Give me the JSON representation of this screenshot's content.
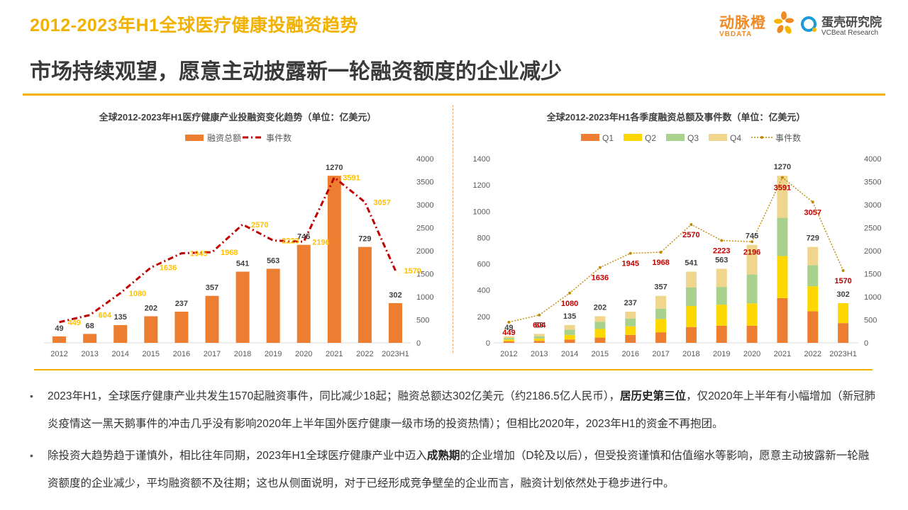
{
  "header": {
    "title": "2012-2023年H1全球医疗健康投融资趋势",
    "subtitle": "市场持续观望，愿意主动披露新一轮融资额度的企业减少"
  },
  "logos": {
    "vbdata_cn": "动脉橙",
    "vbdata_en": "VBDATA",
    "vcbeat_cn": "蛋壳研究院",
    "vcbeat_en": "VCBeat Research"
  },
  "colors": {
    "accent": "#f2b100",
    "bar": "#ed7d31",
    "line": "#c00000",
    "q1": "#ed7d31",
    "q2": "#ffd700",
    "q3": "#a9d18e",
    "q4": "#f0d58c"
  },
  "chart_data": [
    {
      "type": "bar",
      "title": "全球2012-2023年H1医疗健康产业投融资变化趋势（单位：亿美元）",
      "categories": [
        "2012",
        "2013",
        "2014",
        "2015",
        "2016",
        "2017",
        "2018",
        "2019",
        "2020",
        "2021",
        "2022",
        "2023H1"
      ],
      "legend": [
        "融资总额",
        "事件数"
      ],
      "legend_position": "top",
      "series": [
        {
          "name": "融资总额",
          "type": "bar",
          "axis": "left",
          "values": [
            49,
            68,
            135,
            202,
            237,
            357,
            541,
            563,
            745,
            1270,
            729,
            302
          ]
        },
        {
          "name": "事件数",
          "type": "line",
          "axis": "right",
          "values": [
            449,
            604,
            1080,
            1636,
            1945,
            1968,
            2570,
            2223,
            2196,
            3591,
            3057,
            1570
          ]
        }
      ],
      "y_right_ticks": [
        "0",
        "500",
        "1000",
        "1500",
        "2000",
        "2500",
        "3000",
        "3500",
        "4000"
      ],
      "y_right_lim": [
        0,
        4000
      ],
      "y_left_lim": [
        0,
        1400
      ]
    },
    {
      "type": "bar",
      "stacked": true,
      "title": "全球2012-2023年H1各季度融资总额及事件数（单位：亿美元）",
      "categories": [
        "2012",
        "2013",
        "2014",
        "2015",
        "2016",
        "2017",
        "2018",
        "2019",
        "2020",
        "2021",
        "2022",
        "2023H1"
      ],
      "legend": [
        "Q1",
        "Q2",
        "Q3",
        "Q4",
        "事件数"
      ],
      "legend_position": "top",
      "series": [
        {
          "name": "Q1",
          "values": [
            12,
            15,
            25,
            40,
            60,
            80,
            120,
            130,
            130,
            340,
            240,
            150
          ]
        },
        {
          "name": "Q2",
          "values": [
            13,
            18,
            35,
            65,
            65,
            100,
            160,
            160,
            170,
            320,
            190,
            152
          ]
        },
        {
          "name": "Q3",
          "values": [
            12,
            17,
            40,
            55,
            60,
            80,
            140,
            135,
            220,
            290,
            160,
            0
          ]
        },
        {
          "name": "Q4",
          "values": [
            12,
            18,
            35,
            42,
            52,
            97,
            121,
            138,
            225,
            320,
            139,
            0
          ]
        },
        {
          "name": "事件数",
          "type": "line",
          "axis": "right",
          "values": [
            449,
            604,
            1080,
            1636,
            1945,
            1968,
            2570,
            2223,
            2196,
            3591,
            3057,
            1570
          ]
        }
      ],
      "totals": [
        49,
        68,
        135,
        202,
        237,
        357,
        541,
        563,
        745,
        1270,
        729,
        302
      ],
      "y_left_ticks": [
        "0",
        "200",
        "400",
        "600",
        "800",
        "1000",
        "1200",
        "1400"
      ],
      "y_left_lim": [
        0,
        1400
      ],
      "y_right_ticks": [
        "0",
        "500",
        "1000",
        "1500",
        "2000",
        "2500",
        "3000",
        "3500",
        "4000"
      ],
      "y_right_lim": [
        0,
        4000
      ]
    }
  ],
  "bullets": [
    {
      "pre": "2023年H1，全球医疗健康产业共发生1570起融资事件，同比减少18起；融资总额达302亿美元（约2186.5亿人民币），",
      "bold": "居历史第三位",
      "post": "，仅2020年上半年有小幅增加（新冠肺炎疫情这一黑天鹅事件的冲击几乎没有影响2020年上半年国外医疗健康一级市场的投资热情）；但相比2020年，2023年H1的资金不再抱团。"
    },
    {
      "pre": "除投资大趋势趋于谨慎外，相比往年同期，2023年H1全球医疗健康产业中迈入",
      "bold": "成熟期",
      "post": "的企业增加（D轮及以后），但受投资谨慎和估值缩水等影响，愿意主动披露新一轮融资额度的企业减少，平均融资额不及往期；这也从侧面说明，对于已经形成竞争壁垒的企业而言，融资计划依然处于稳步进行中。"
    }
  ]
}
